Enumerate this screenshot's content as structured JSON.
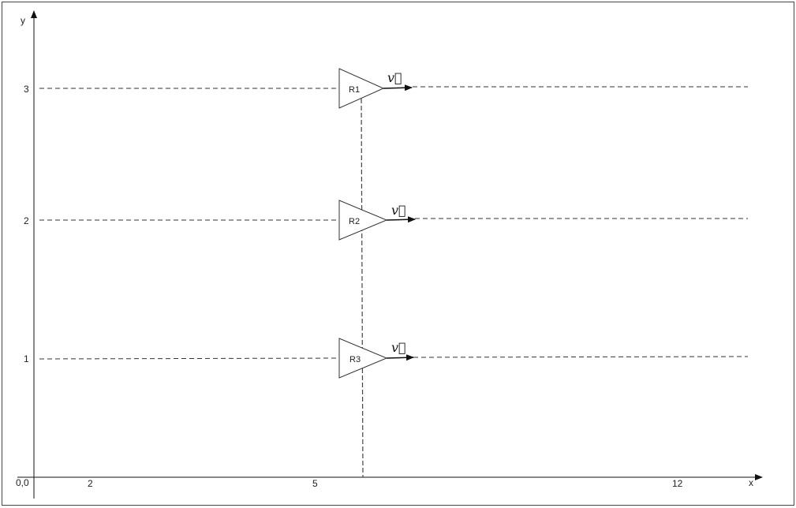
{
  "axes": {
    "x_label": "x",
    "y_label": "y",
    "origin_label": "0,0",
    "x_ticks": [
      "2",
      "5",
      "12"
    ],
    "y_ticks": [
      "1",
      "2",
      "3"
    ]
  },
  "robots": [
    {
      "label": "R1",
      "y": 3,
      "velocity_label": "v⃗"
    },
    {
      "label": "R2",
      "y": 2,
      "velocity_label": "v⃗"
    },
    {
      "label": "R3",
      "y": 1,
      "velocity_label": "v⃗"
    }
  ]
}
